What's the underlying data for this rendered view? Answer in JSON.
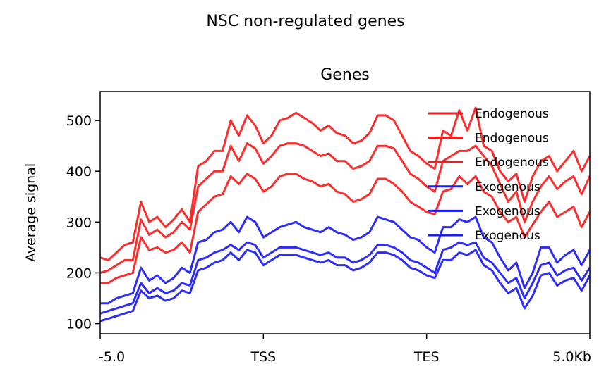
{
  "chart_data": {
    "type": "line",
    "suptitle": "NSC non-regulated genes",
    "title": "Genes",
    "ylabel": "Average signal",
    "xlabel": "",
    "xlim": [
      0,
      3
    ],
    "ylim": [
      80,
      557
    ],
    "x_ticks": [
      {
        "pos": 0,
        "label": "-5.0"
      },
      {
        "pos": 1,
        "label": "TSS"
      },
      {
        "pos": 2,
        "label": "TES"
      },
      {
        "pos": 3,
        "label": "5.0Kb"
      }
    ],
    "y_ticks": [
      100,
      200,
      300,
      400,
      500
    ],
    "grid": false,
    "legend_position": "top-right",
    "colors": {
      "Endogenous": "#ff1a1a",
      "Exogenous": "#1a1aff"
    },
    "x": [
      0.0,
      0.05,
      0.1,
      0.15,
      0.2,
      0.25,
      0.3,
      0.35,
      0.4,
      0.45,
      0.5,
      0.55,
      0.6,
      0.65,
      0.7,
      0.75,
      0.8,
      0.85,
      0.9,
      0.95,
      1.0,
      1.05,
      1.1,
      1.15,
      1.2,
      1.25,
      1.3,
      1.35,
      1.4,
      1.45,
      1.5,
      1.55,
      1.6,
      1.65,
      1.7,
      1.75,
      1.8,
      1.85,
      1.9,
      1.95,
      2.0,
      2.05,
      2.1,
      2.15,
      2.2,
      2.25,
      2.3,
      2.35,
      2.4,
      2.45,
      2.5,
      2.55,
      2.6,
      2.65,
      2.7,
      2.75,
      2.8,
      2.85,
      2.9,
      2.95,
      3.0
    ],
    "series": [
      {
        "name": "Endogenous",
        "values": [
          230,
          225,
          240,
          255,
          260,
          340,
          300,
          310,
          290,
          305,
          325,
          300,
          410,
          420,
          440,
          440,
          500,
          470,
          510,
          490,
          455,
          470,
          500,
          505,
          515,
          505,
          495,
          480,
          490,
          475,
          470,
          455,
          460,
          475,
          510,
          510,
          500,
          470,
          440,
          430,
          415,
          405,
          480,
          470,
          520,
          480,
          525,
          450,
          440,
          400,
          380,
          395,
          340,
          390,
          420,
          430,
          400,
          420,
          440,
          400,
          430
        ]
      },
      {
        "name": "Endogenous",
        "values": [
          200,
          205,
          215,
          225,
          225,
          305,
          275,
          285,
          270,
          280,
          300,
          285,
          370,
          385,
          400,
          400,
          450,
          420,
          455,
          445,
          415,
          430,
          450,
          455,
          455,
          450,
          440,
          430,
          435,
          420,
          420,
          405,
          410,
          420,
          450,
          450,
          445,
          420,
          395,
          385,
          370,
          360,
          420,
          430,
          440,
          440,
          450,
          430,
          410,
          375,
          340,
          360,
          300,
          340,
          370,
          390,
          365,
          380,
          390,
          355,
          390
        ]
      },
      {
        "name": "Endogenous",
        "values": [
          180,
          180,
          190,
          195,
          200,
          270,
          245,
          250,
          240,
          245,
          260,
          240,
          320,
          335,
          350,
          355,
          390,
          375,
          395,
          385,
          360,
          370,
          390,
          395,
          395,
          385,
          380,
          370,
          375,
          360,
          355,
          340,
          345,
          355,
          385,
          385,
          375,
          360,
          340,
          330,
          320,
          315,
          360,
          365,
          390,
          375,
          390,
          360,
          350,
          320,
          300,
          310,
          270,
          295,
          320,
          340,
          310,
          320,
          330,
          290,
          320
        ]
      },
      {
        "name": "Exogenous",
        "values": [
          140,
          140,
          150,
          155,
          160,
          210,
          185,
          195,
          180,
          190,
          210,
          200,
          260,
          265,
          280,
          285,
          300,
          280,
          310,
          300,
          270,
          280,
          290,
          295,
          300,
          290,
          285,
          280,
          290,
          280,
          275,
          265,
          270,
          280,
          310,
          305,
          300,
          285,
          270,
          265,
          250,
          240,
          290,
          290,
          305,
          300,
          310,
          270,
          260,
          230,
          205,
          220,
          170,
          200,
          250,
          250,
          220,
          235,
          245,
          215,
          245
        ]
      },
      {
        "name": "Exogenous",
        "values": [
          120,
          125,
          130,
          135,
          140,
          180,
          160,
          170,
          160,
          165,
          180,
          175,
          225,
          230,
          240,
          245,
          255,
          245,
          260,
          255,
          230,
          240,
          250,
          250,
          250,
          245,
          240,
          235,
          240,
          230,
          230,
          220,
          225,
          235,
          255,
          255,
          250,
          240,
          225,
          220,
          210,
          200,
          245,
          250,
          260,
          255,
          260,
          230,
          220,
          200,
          180,
          190,
          150,
          180,
          215,
          220,
          195,
          205,
          210,
          185,
          210
        ]
      },
      {
        "name": "Exogenous",
        "values": [
          105,
          110,
          115,
          120,
          125,
          165,
          150,
          155,
          145,
          150,
          165,
          160,
          205,
          210,
          220,
          225,
          240,
          225,
          245,
          240,
          215,
          225,
          235,
          235,
          235,
          230,
          225,
          220,
          225,
          215,
          215,
          205,
          210,
          220,
          240,
          240,
          235,
          225,
          210,
          205,
          195,
          190,
          225,
          225,
          240,
          235,
          245,
          215,
          205,
          180,
          160,
          170,
          130,
          155,
          195,
          200,
          175,
          185,
          190,
          165,
          195
        ]
      }
    ]
  }
}
